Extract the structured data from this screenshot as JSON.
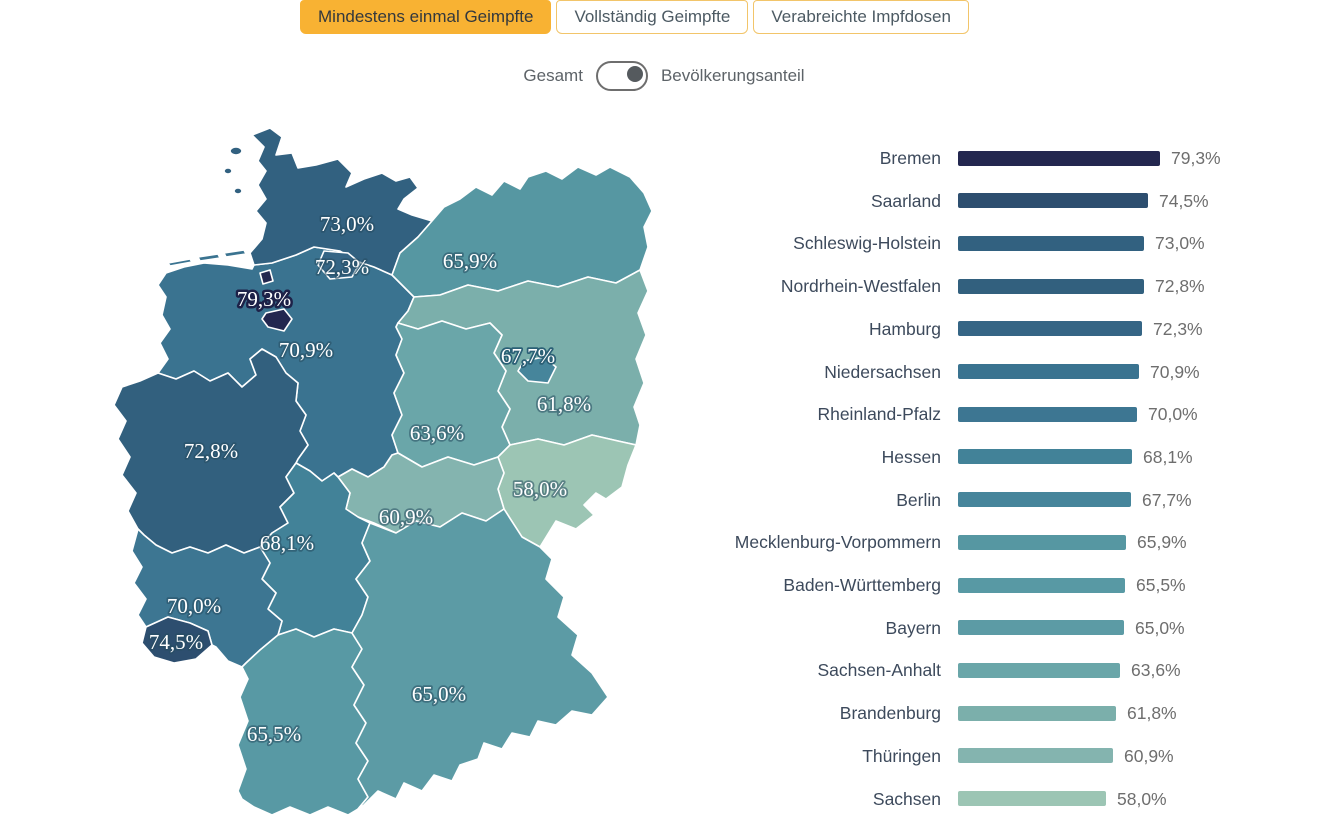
{
  "tabs": {
    "items": [
      {
        "label": "Mindestens einmal Geimpfte",
        "active": true
      },
      {
        "label": "Vollständig Geimpfte",
        "active": false
      },
      {
        "label": "Verabreichte Impfdosen",
        "active": false
      }
    ]
  },
  "toggle": {
    "left_label": "Gesamt",
    "right_label": "Bevölkerungsanteil",
    "selected": "right"
  },
  "ui_colors": {
    "active_tab_bg": "#f8b233",
    "tab_border": "#f2c56a",
    "toggle_border": "#6e6e6e",
    "toggle_knob": "#555a5e",
    "bar_label_text": "#3d4a5c",
    "bar_value_text": "#6e6e6e",
    "map_border": "#ffffff"
  },
  "states": [
    {
      "id": "HB",
      "name": "Bremen",
      "value": 79.3,
      "value_label": "79,3%",
      "color": "#23274f"
    },
    {
      "id": "SL",
      "name": "Saarland",
      "value": 74.5,
      "value_label": "74,5%",
      "color": "#2d4e6f"
    },
    {
      "id": "SH",
      "name": "Schleswig-Holstein",
      "value": 73.0,
      "value_label": "73,0%",
      "color": "#326180"
    },
    {
      "id": "NW",
      "name": "Nordrhein-Westfalen",
      "value": 72.8,
      "value_label": "72,8%",
      "color": "#32607e"
    },
    {
      "id": "HH",
      "name": "Hamburg",
      "value": 72.3,
      "value_label": "72,3%",
      "color": "#356585"
    },
    {
      "id": "NI",
      "name": "Niedersachsen",
      "value": 70.9,
      "value_label": "70,9%",
      "color": "#3a7390"
    },
    {
      "id": "RP",
      "name": "Rheinland-Pfalz",
      "value": 70.0,
      "value_label": "70,0%",
      "color": "#3d7692"
    },
    {
      "id": "HE",
      "name": "Hessen",
      "value": 68.1,
      "value_label": "68,1%",
      "color": "#428298"
    },
    {
      "id": "BE",
      "name": "Berlin",
      "value": 67.7,
      "value_label": "67,7%",
      "color": "#46859b"
    },
    {
      "id": "MV",
      "name": "Mecklenburg-Vorpommern",
      "value": 65.9,
      "value_label": "65,9%",
      "color": "#5697a2"
    },
    {
      "id": "BW",
      "name": "Baden-Württemberg",
      "value": 65.5,
      "value_label": "65,5%",
      "color": "#5899a4"
    },
    {
      "id": "BY",
      "name": "Bayern",
      "value": 65.0,
      "value_label": "65,0%",
      "color": "#5c9ba5"
    },
    {
      "id": "ST",
      "name": "Sachsen-Anhalt",
      "value": 63.6,
      "value_label": "63,6%",
      "color": "#6aa6a9"
    },
    {
      "id": "BB",
      "name": "Brandenburg",
      "value": 61.8,
      "value_label": "61,8%",
      "color": "#7bafab"
    },
    {
      "id": "TH",
      "name": "Thüringen",
      "value": 60.9,
      "value_label": "60,9%",
      "color": "#84b4af"
    },
    {
      "id": "SN",
      "name": "Sachsen",
      "value": 58.0,
      "value_label": "58,0%",
      "color": "#9cc5b4"
    }
  ],
  "chart_data": {
    "type": "bar",
    "orientation": "horizontal",
    "title": "Mindestens einmal Geimpfte — Bevölkerungsanteil",
    "unit": "%",
    "decimal_separator": ",",
    "xlim": [
      0,
      80
    ],
    "grid": false,
    "legend": "none",
    "categories": [
      "Bremen",
      "Saarland",
      "Schleswig-Holstein",
      "Nordrhein-Westfalen",
      "Hamburg",
      "Niedersachsen",
      "Rheinland-Pfalz",
      "Hessen",
      "Berlin",
      "Mecklenburg-Vorpommern",
      "Baden-Württemberg",
      "Bayern",
      "Sachsen-Anhalt",
      "Brandenburg",
      "Thüringen",
      "Sachsen"
    ],
    "values": [
      79.3,
      74.5,
      73.0,
      72.8,
      72.3,
      70.9,
      70.0,
      68.1,
      67.7,
      65.9,
      65.5,
      65.0,
      63.6,
      61.8,
      60.9,
      58.0
    ],
    "value_labels": [
      "79,3%",
      "74,5%",
      "73,0%",
      "72,8%",
      "72,3%",
      "70,9%",
      "70,0%",
      "68,1%",
      "67,7%",
      "65,9%",
      "65,5%",
      "65,0%",
      "63,6%",
      "61,8%",
      "60,9%",
      "58,0%"
    ],
    "bar_colors": [
      "#23274f",
      "#2d4e6f",
      "#326180",
      "#32607e",
      "#356585",
      "#3a7390",
      "#3d7692",
      "#428298",
      "#46859b",
      "#5697a2",
      "#5899a4",
      "#5c9ba5",
      "#6aa6a9",
      "#7bafab",
      "#84b4af",
      "#9cc5b4"
    ]
  }
}
